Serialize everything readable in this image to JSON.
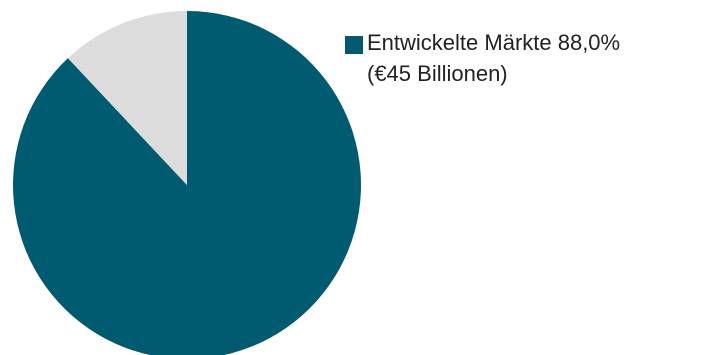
{
  "chart_data": {
    "type": "pie",
    "title": "",
    "slices": [
      {
        "label": "Entwickelte Märkte",
        "value": 88.0,
        "color": "#005B70"
      },
      {
        "label": "",
        "value": 12.0,
        "color": "#DCDCDC"
      }
    ],
    "start_angle_deg": 0,
    "direction": "clockwise",
    "legend": {
      "placement": "right",
      "entries": [
        {
          "line1": "Entwickelte Märkte 88,0%",
          "line2": "(€45 Billionen)",
          "color": "#005B70"
        }
      ]
    }
  }
}
